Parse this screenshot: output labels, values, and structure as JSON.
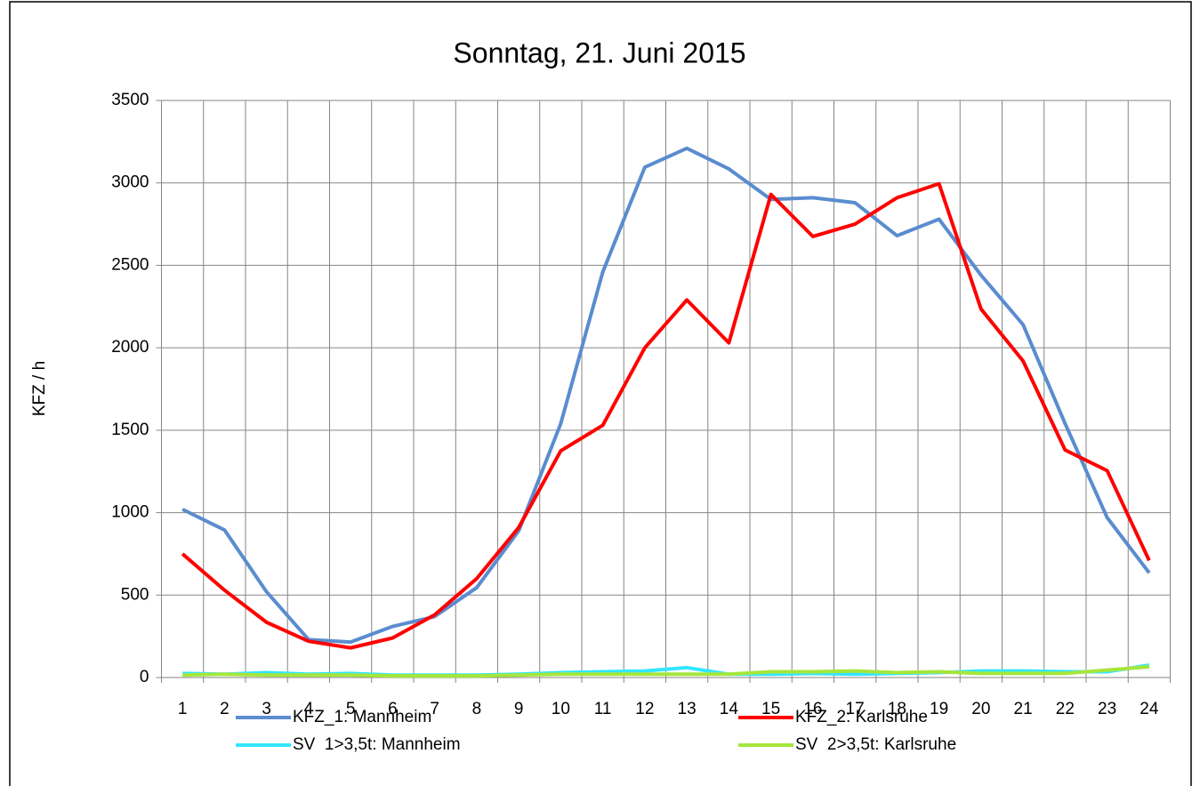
{
  "chart_data": {
    "type": "line",
    "title": "Sonntag, 21. Juni 2015",
    "ylabel": "KFZ / h",
    "categories": [
      "1",
      "2",
      "3",
      "4",
      "5",
      "6",
      "7",
      "8",
      "9",
      "10",
      "11",
      "12",
      "13",
      "14",
      "15",
      "16",
      "17",
      "18",
      "19",
      "20",
      "21",
      "22",
      "23",
      "24"
    ],
    "series": [
      {
        "name": "KFZ_1: Mannheim",
        "color": "#5a8ccf",
        "values": [
          1020,
          895,
          520,
          230,
          215,
          310,
          370,
          545,
          890,
          1540,
          2460,
          3095,
          3210,
          3085,
          2900,
          2910,
          2880,
          2680,
          2780,
          2440,
          2140,
          1540,
          970,
          635
        ]
      },
      {
        "name": "KFZ_2: Karlsruhe",
        "color": "#ff0000",
        "values": [
          750,
          530,
          335,
          220,
          180,
          240,
          380,
          600,
          910,
          1375,
          1530,
          2000,
          2290,
          2030,
          2930,
          2675,
          2750,
          2910,
          2995,
          2235,
          1920,
          1380,
          1255,
          710
        ]
      },
      {
        "name": "SV  1>3,5t: Mannheim",
        "color": "#33e6ff",
        "values": [
          25,
          20,
          30,
          20,
          25,
          15,
          15,
          15,
          20,
          30,
          35,
          40,
          60,
          20,
          20,
          25,
          20,
          25,
          30,
          40,
          40,
          35,
          35,
          75
        ]
      },
      {
        "name": "SV  2>3,5t: Karlsruhe",
        "color": "#a6e63c",
        "values": [
          15,
          20,
          15,
          15,
          15,
          10,
          10,
          10,
          15,
          20,
          20,
          20,
          20,
          20,
          35,
          35,
          40,
          30,
          35,
          25,
          25,
          25,
          45,
          65
        ]
      }
    ],
    "ylim": [
      0,
      3500
    ],
    "yticks": [
      0,
      500,
      1000,
      1500,
      2000,
      2500,
      3000,
      3500
    ],
    "grid": true,
    "legend": "bottom"
  }
}
